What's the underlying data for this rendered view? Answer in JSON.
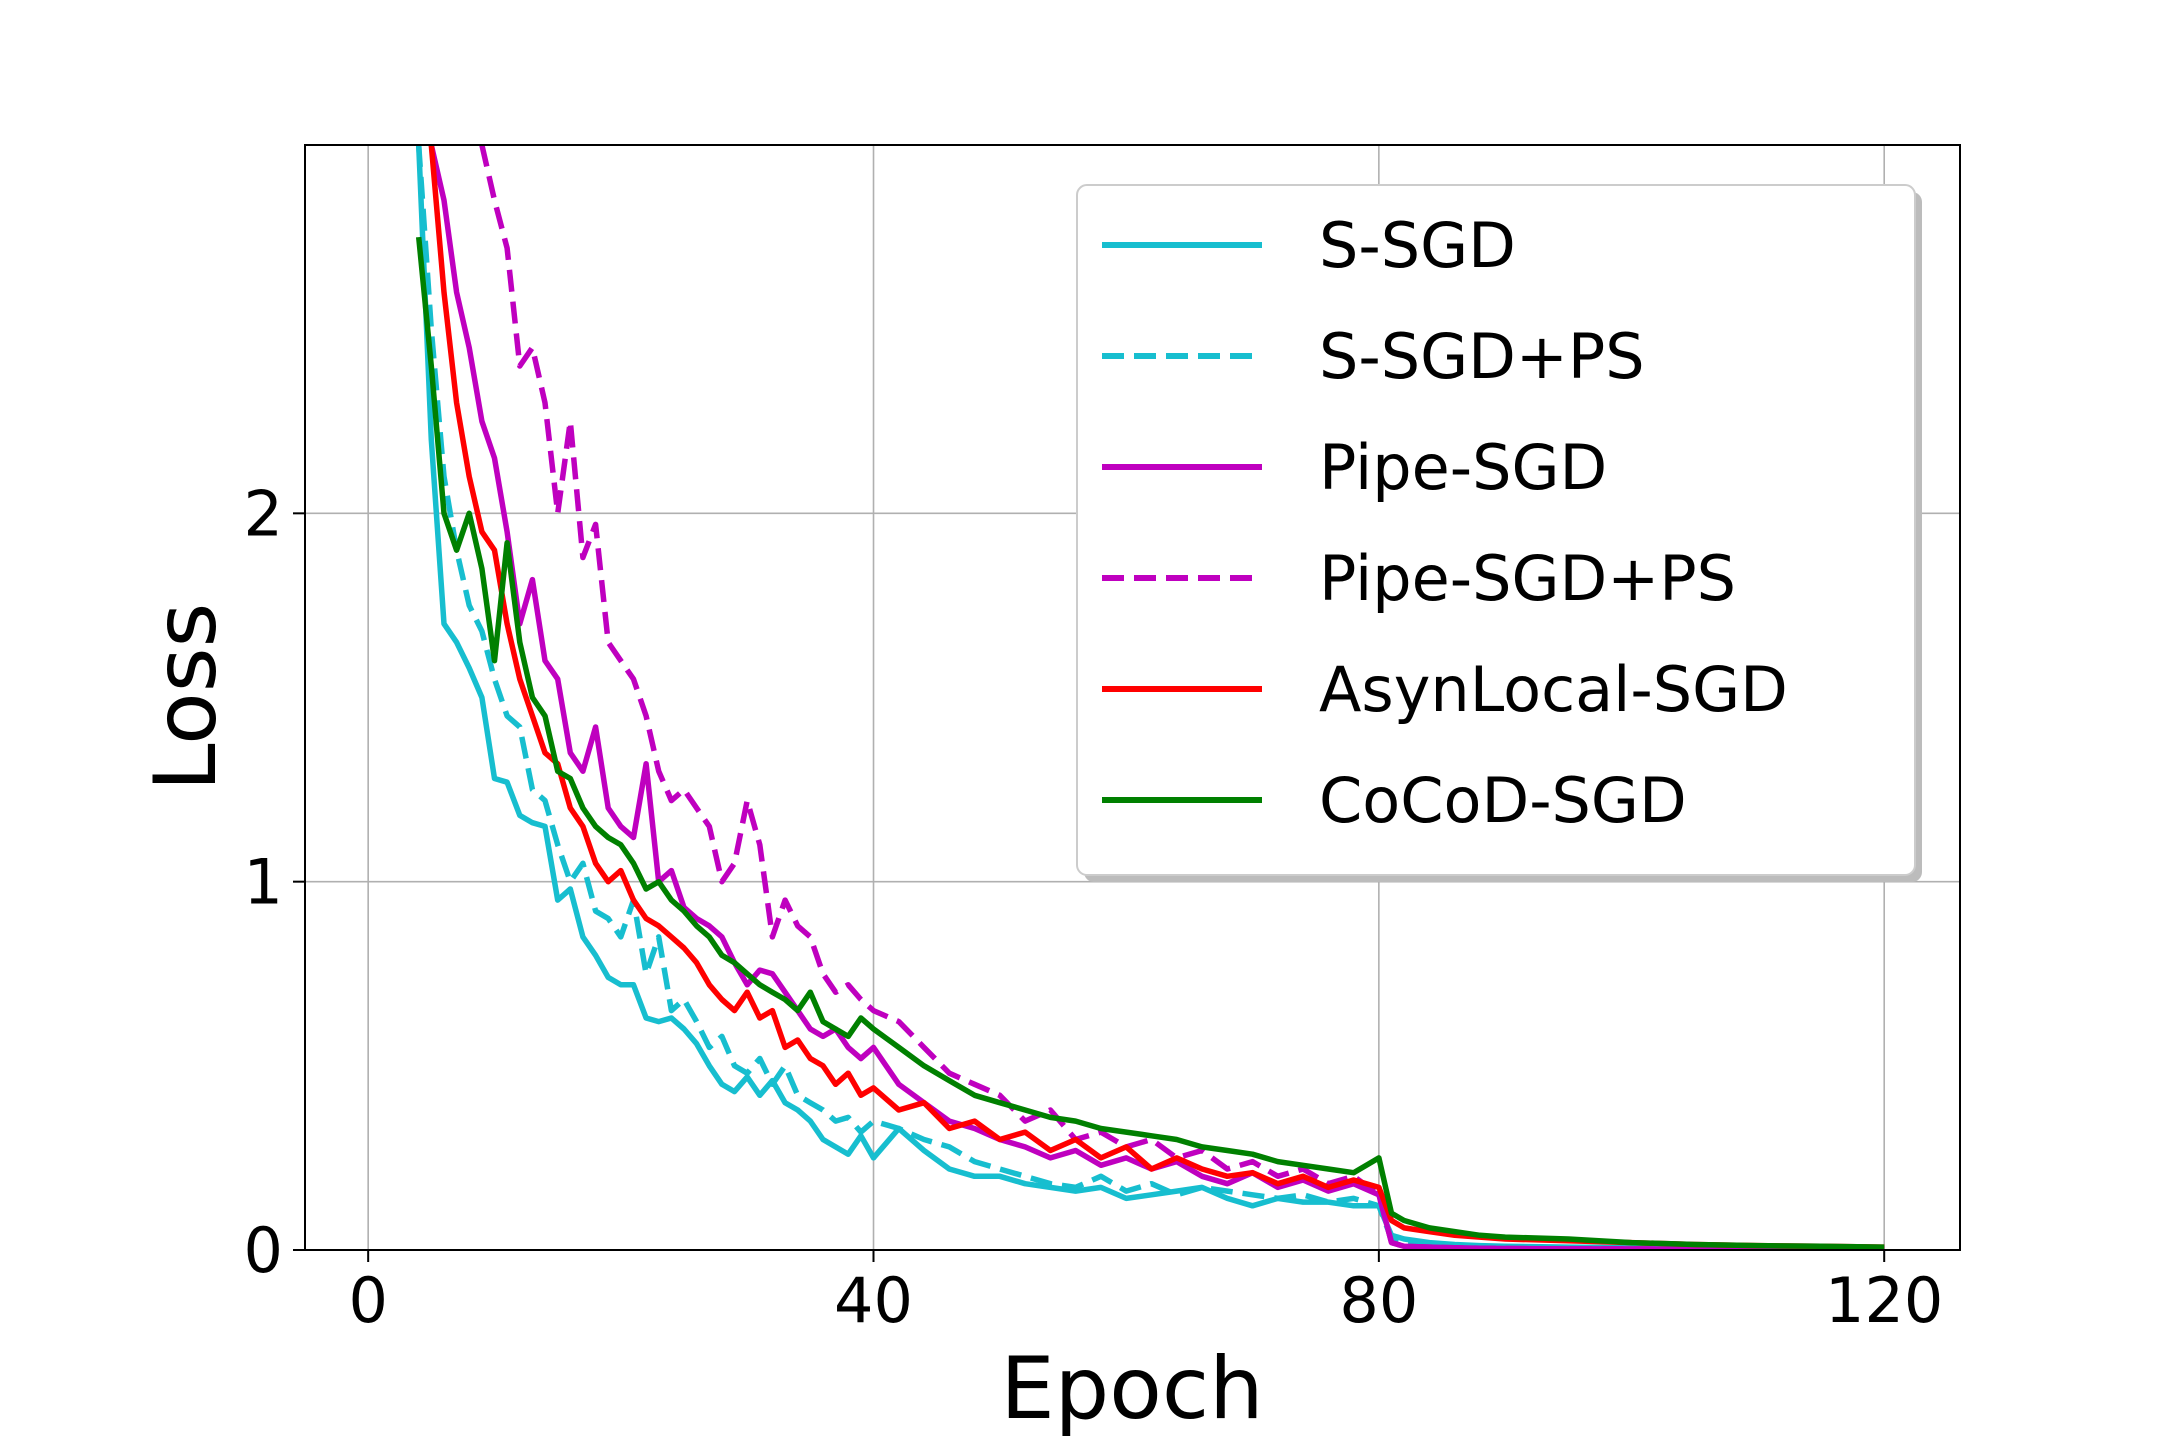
{
  "chart_data": {
    "type": "line",
    "title": "",
    "xlabel": "Epoch",
    "ylabel": "Loss",
    "xlim": [
      -5,
      126
    ],
    "ylim": [
      0,
      3.0
    ],
    "xticks": [
      0,
      40,
      80,
      120
    ],
    "yticks": [
      0,
      1,
      2
    ],
    "grid": true,
    "legend_position": "top-right",
    "series": [
      {
        "name": "S-SGD",
        "color": "#17becf",
        "style": "solid",
        "x": [
          4,
          5,
          6,
          7,
          8,
          9,
          10,
          11,
          12,
          13,
          14,
          15,
          16,
          17,
          18,
          19,
          20,
          21,
          22,
          23,
          24,
          25,
          26,
          27,
          28,
          29,
          30,
          31,
          32,
          33,
          34,
          35,
          36,
          37,
          38,
          39,
          40,
          42,
          44,
          46,
          48,
          50,
          52,
          54,
          56,
          58,
          60,
          62,
          64,
          66,
          68,
          70,
          72,
          74,
          76,
          78,
          80,
          81,
          82,
          84,
          86,
          88,
          90,
          95,
          100,
          105,
          110,
          115,
          120
        ],
        "y": [
          3.0,
          2.2,
          1.7,
          1.65,
          1.58,
          1.5,
          1.28,
          1.27,
          1.18,
          1.16,
          1.15,
          0.95,
          0.98,
          0.85,
          0.8,
          0.74,
          0.72,
          0.72,
          0.63,
          0.62,
          0.63,
          0.6,
          0.56,
          0.5,
          0.45,
          0.43,
          0.47,
          0.42,
          0.46,
          0.4,
          0.38,
          0.35,
          0.3,
          0.28,
          0.26,
          0.31,
          0.25,
          0.33,
          0.27,
          0.22,
          0.2,
          0.2,
          0.18,
          0.17,
          0.16,
          0.17,
          0.14,
          0.15,
          0.16,
          0.17,
          0.14,
          0.12,
          0.14,
          0.13,
          0.13,
          0.12,
          0.12,
          0.04,
          0.03,
          0.02,
          0.015,
          0.012,
          0.01,
          0.008,
          0.006,
          0.005,
          0.004,
          0.004,
          0.003
        ]
      },
      {
        "name": "S-SGD+PS",
        "color": "#17becf",
        "style": "dashed",
        "x": [
          4,
          5,
          6,
          7,
          8,
          9,
          10,
          11,
          12,
          13,
          14,
          15,
          16,
          17,
          18,
          19,
          20,
          21,
          22,
          23,
          24,
          25,
          26,
          27,
          28,
          29,
          30,
          31,
          32,
          33,
          34,
          35,
          36,
          37,
          38,
          39,
          40,
          42,
          44,
          46,
          48,
          50,
          52,
          54,
          56,
          58,
          60,
          62,
          64,
          66,
          68,
          70,
          72,
          74,
          76,
          78,
          80,
          81,
          82,
          84,
          86,
          88,
          90,
          95,
          100,
          105,
          110,
          115,
          120
        ],
        "y": [
          3.0,
          2.5,
          2.1,
          1.9,
          1.75,
          1.68,
          1.55,
          1.45,
          1.42,
          1.25,
          1.22,
          1.1,
          1.0,
          1.05,
          0.92,
          0.9,
          0.85,
          0.95,
          0.75,
          0.85,
          0.65,
          0.68,
          0.62,
          0.55,
          0.58,
          0.5,
          0.48,
          0.52,
          0.45,
          0.5,
          0.42,
          0.4,
          0.38,
          0.35,
          0.36,
          0.32,
          0.35,
          0.33,
          0.3,
          0.28,
          0.24,
          0.22,
          0.2,
          0.18,
          0.17,
          0.2,
          0.16,
          0.18,
          0.15,
          0.17,
          0.16,
          0.15,
          0.14,
          0.15,
          0.13,
          0.14,
          0.12,
          0.03,
          0.02,
          0.015,
          0.012,
          0.01,
          0.008,
          0.006,
          0.005,
          0.004,
          0.004,
          0.003,
          0.003
        ]
      },
      {
        "name": "Pipe-SGD",
        "color": "#bf00bf",
        "style": "solid",
        "x": [
          5,
          6,
          7,
          8,
          9,
          10,
          11,
          12,
          13,
          14,
          15,
          16,
          17,
          18,
          19,
          20,
          21,
          22,
          23,
          24,
          25,
          26,
          27,
          28,
          29,
          30,
          31,
          32,
          33,
          34,
          35,
          36,
          37,
          38,
          39,
          40,
          42,
          44,
          46,
          48,
          50,
          52,
          54,
          56,
          58,
          60,
          62,
          64,
          66,
          68,
          70,
          72,
          74,
          76,
          78,
          80,
          81,
          82,
          84,
          86,
          88,
          90,
          95,
          100,
          105,
          110,
          115,
          120
        ],
        "y": [
          3.0,
          2.85,
          2.6,
          2.45,
          2.25,
          2.15,
          1.95,
          1.7,
          1.82,
          1.6,
          1.55,
          1.35,
          1.3,
          1.42,
          1.2,
          1.15,
          1.12,
          1.32,
          1.0,
          1.03,
          0.93,
          0.9,
          0.88,
          0.85,
          0.78,
          0.72,
          0.76,
          0.75,
          0.7,
          0.65,
          0.6,
          0.58,
          0.6,
          0.55,
          0.52,
          0.55,
          0.45,
          0.4,
          0.35,
          0.33,
          0.3,
          0.28,
          0.25,
          0.27,
          0.23,
          0.25,
          0.22,
          0.24,
          0.2,
          0.18,
          0.21,
          0.17,
          0.19,
          0.16,
          0.18,
          0.15,
          0.02,
          0.01,
          0.008,
          0.006,
          0.005,
          0.004,
          0.003,
          0.003,
          0.002,
          0.002,
          0.002,
          0.002
        ]
      },
      {
        "name": "Pipe-SGD+PS",
        "color": "#bf00bf",
        "style": "dashed",
        "x": [
          9,
          10,
          11,
          12,
          13,
          14,
          15,
          16,
          17,
          18,
          19,
          20,
          21,
          22,
          23,
          24,
          25,
          26,
          27,
          28,
          29,
          30,
          31,
          32,
          33,
          34,
          35,
          36,
          37,
          38,
          39,
          40,
          42,
          44,
          46,
          48,
          50,
          52,
          54,
          56,
          58,
          60,
          62,
          64,
          66,
          68,
          70,
          72,
          74,
          76,
          78,
          80,
          81,
          82,
          84,
          86,
          88,
          90,
          95,
          100,
          105,
          110,
          115,
          120
        ],
        "y": [
          3.0,
          2.85,
          2.72,
          2.4,
          2.45,
          2.3,
          2.0,
          2.25,
          1.88,
          1.97,
          1.65,
          1.6,
          1.55,
          1.45,
          1.3,
          1.22,
          1.25,
          1.2,
          1.15,
          1.0,
          1.05,
          1.22,
          1.1,
          0.85,
          0.95,
          0.88,
          0.85,
          0.75,
          0.7,
          0.72,
          0.68,
          0.65,
          0.62,
          0.55,
          0.48,
          0.45,
          0.42,
          0.35,
          0.38,
          0.3,
          0.32,
          0.28,
          0.3,
          0.25,
          0.27,
          0.22,
          0.24,
          0.2,
          0.22,
          0.18,
          0.2,
          0.15,
          0.02,
          0.01,
          0.008,
          0.006,
          0.005,
          0.004,
          0.003,
          0.003,
          0.002,
          0.002,
          0.002,
          0.002
        ]
      },
      {
        "name": "AsynLocal-SGD",
        "color": "#ff0000",
        "style": "solid",
        "x": [
          5,
          6,
          7,
          8,
          9,
          10,
          11,
          12,
          13,
          14,
          15,
          16,
          17,
          18,
          19,
          20,
          21,
          22,
          23,
          24,
          25,
          26,
          27,
          28,
          29,
          30,
          31,
          32,
          33,
          34,
          35,
          36,
          37,
          38,
          39,
          40,
          42,
          44,
          46,
          48,
          50,
          52,
          54,
          56,
          58,
          60,
          62,
          64,
          66,
          68,
          70,
          72,
          74,
          76,
          78,
          80,
          81,
          82,
          84,
          86,
          88,
          90,
          95,
          100,
          105,
          110,
          115,
          120
        ],
        "y": [
          3.0,
          2.6,
          2.3,
          2.1,
          1.95,
          1.9,
          1.7,
          1.55,
          1.45,
          1.35,
          1.32,
          1.2,
          1.15,
          1.05,
          1.0,
          1.03,
          0.95,
          0.9,
          0.88,
          0.85,
          0.82,
          0.78,
          0.72,
          0.68,
          0.65,
          0.7,
          0.63,
          0.65,
          0.55,
          0.57,
          0.52,
          0.5,
          0.45,
          0.48,
          0.42,
          0.44,
          0.38,
          0.4,
          0.33,
          0.35,
          0.3,
          0.32,
          0.27,
          0.3,
          0.25,
          0.28,
          0.22,
          0.25,
          0.22,
          0.2,
          0.21,
          0.18,
          0.2,
          0.17,
          0.19,
          0.17,
          0.08,
          0.06,
          0.05,
          0.04,
          0.035,
          0.03,
          0.025,
          0.02,
          0.015,
          0.012,
          0.01,
          0.008
        ]
      },
      {
        "name": "CoCoD-SGD",
        "color": "#008000",
        "style": "solid",
        "x": [
          4,
          5,
          6,
          7,
          8,
          9,
          10,
          11,
          12,
          13,
          14,
          15,
          16,
          17,
          18,
          19,
          20,
          21,
          22,
          23,
          24,
          25,
          26,
          27,
          28,
          29,
          30,
          31,
          32,
          33,
          34,
          35,
          36,
          37,
          38,
          39,
          40,
          42,
          44,
          46,
          48,
          50,
          52,
          54,
          56,
          58,
          60,
          62,
          64,
          66,
          68,
          70,
          72,
          74,
          76,
          78,
          80,
          81,
          82,
          84,
          86,
          88,
          90,
          95,
          100,
          105,
          110,
          115,
          120
        ],
        "y": [
          2.75,
          2.4,
          2.0,
          1.9,
          2.0,
          1.85,
          1.6,
          1.92,
          1.65,
          1.5,
          1.45,
          1.3,
          1.28,
          1.2,
          1.15,
          1.12,
          1.1,
          1.05,
          0.98,
          1.0,
          0.95,
          0.92,
          0.88,
          0.85,
          0.8,
          0.78,
          0.75,
          0.72,
          0.7,
          0.68,
          0.65,
          0.7,
          0.62,
          0.6,
          0.58,
          0.63,
          0.6,
          0.55,
          0.5,
          0.46,
          0.42,
          0.4,
          0.38,
          0.36,
          0.35,
          0.33,
          0.32,
          0.31,
          0.3,
          0.28,
          0.27,
          0.26,
          0.24,
          0.23,
          0.22,
          0.21,
          0.25,
          0.1,
          0.08,
          0.06,
          0.05,
          0.04,
          0.035,
          0.03,
          0.02,
          0.015,
          0.012,
          0.01,
          0.008
        ]
      }
    ]
  }
}
